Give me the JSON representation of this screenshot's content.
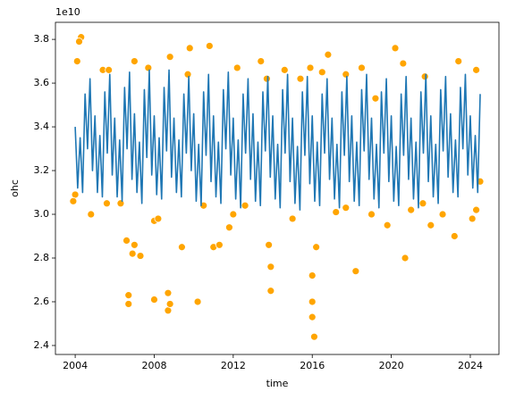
{
  "chart_data": {
    "type": "line",
    "xlabel": "time",
    "ylabel": "ohc",
    "y_multiplier": "1e10",
    "xlim": [
      2003.0,
      2025.45
    ],
    "ylim": [
      2.359,
      3.878
    ],
    "xticks": [
      2004,
      2008,
      2012,
      2016,
      2020,
      2024
    ],
    "yticks": [
      2.4,
      2.6,
      2.8,
      {
        "value": 3,
        "label": "3.0"
      },
      3.2,
      3.4,
      3.6,
      3.8
    ],
    "series": [
      {
        "type": "scatter",
        "color": "#ffa500",
        "x": [
          2004.3,
          2004.2,
          2004.1,
          2004.0,
          2003.9,
          2004.8,
          2005.4,
          2005.6,
          2006.3,
          2006.6,
          2006.7,
          2006.7,
          2006.9,
          2007.0,
          2007.3,
          2007.0,
          2007.7,
          2008.0,
          2008.0,
          2008.2,
          2008.7,
          2008.7,
          2008.8,
          2008.8,
          2009.4,
          2009.8,
          2010.2,
          2010.8,
          2011.0,
          2011.3,
          2011.8,
          2012.2,
          2012.6,
          2013.4,
          2013.8,
          2013.9,
          2013.9,
          2014.6,
          2015.4,
          2015.9,
          2016.0,
          2016.0,
          2016.0,
          2016.1,
          2016.2,
          2016.5,
          2016.8,
          2017.2,
          2018.2,
          2018.5,
          2019.2,
          2019.8,
          2020.2,
          2020.6,
          2020.7,
          2021.6,
          2022.6,
          2023.2,
          2023.4,
          2024.1,
          2024.3,
          2024.5,
          2024.3,
          2012.0,
          2010.5,
          2015.0,
          2017.7,
          2019.0,
          2021.0,
          2022.0,
          2005.7,
          2009.7,
          2013.7,
          2017.7,
          2021.7
        ],
        "values": [
          3.81,
          3.79,
          3.7,
          3.09,
          3.06,
          3.0,
          3.66,
          3.05,
          3.05,
          2.88,
          2.63,
          2.59,
          2.82,
          2.86,
          2.81,
          3.7,
          3.67,
          2.97,
          2.61,
          2.98,
          2.64,
          2.56,
          2.59,
          3.72,
          2.85,
          3.76,
          2.6,
          3.77,
          2.85,
          2.86,
          2.94,
          3.67,
          3.04,
          3.7,
          2.86,
          2.76,
          2.65,
          3.66,
          3.62,
          3.67,
          2.72,
          2.6,
          2.53,
          2.44,
          2.85,
          3.65,
          3.73,
          3.01,
          2.74,
          3.67,
          3.53,
          2.95,
          3.76,
          3.69,
          2.8,
          3.05,
          3.0,
          2.9,
          3.7,
          2.98,
          3.02,
          3.15,
          3.66,
          3.0,
          3.04,
          2.98,
          3.03,
          3.0,
          3.02,
          2.95,
          3.66,
          3.64,
          3.62,
          3.64,
          3.63
        ]
      },
      {
        "color": "#1f77b4",
        "x": [
          2004,
          2004.125,
          2004.25,
          2004.375,
          2004.5,
          2004.625,
          2004.75,
          2004.875,
          2005,
          2005.125,
          2005.25,
          2005.375,
          2005.5,
          2005.625,
          2005.75,
          2005.875,
          2006,
          2006.125,
          2006.25,
          2006.375,
          2006.5,
          2006.625,
          2006.75,
          2006.875,
          2007,
          2007.125,
          2007.25,
          2007.375,
          2007.5,
          2007.625,
          2007.75,
          2007.875,
          2008,
          2008.125,
          2008.25,
          2008.375,
          2008.5,
          2008.625,
          2008.75,
          2008.875,
          2009,
          2009.125,
          2009.25,
          2009.375,
          2009.5,
          2009.625,
          2009.75,
          2009.875,
          2010,
          2010.125,
          2010.25,
          2010.375,
          2010.5,
          2010.625,
          2010.75,
          2010.875,
          2011,
          2011.125,
          2011.25,
          2011.375,
          2011.5,
          2011.625,
          2011.75,
          2011.875,
          2012,
          2012.125,
          2012.25,
          2012.375,
          2012.5,
          2012.625,
          2012.75,
          2012.875,
          2013,
          2013.125,
          2013.25,
          2013.375,
          2013.5,
          2013.625,
          2013.75,
          2013.875,
          2014,
          2014.125,
          2014.25,
          2014.375,
          2014.5,
          2014.625,
          2014.75,
          2014.875,
          2015,
          2015.125,
          2015.25,
          2015.375,
          2015.5,
          2015.625,
          2015.75,
          2015.875,
          2016,
          2016.125,
          2016.25,
          2016.375,
          2016.5,
          2016.625,
          2016.75,
          2016.875,
          2017,
          2017.125,
          2017.25,
          2017.375,
          2017.5,
          2017.625,
          2017.75,
          2017.875,
          2018,
          2018.125,
          2018.25,
          2018.375,
          2018.5,
          2018.625,
          2018.75,
          2018.875,
          2019,
          2019.125,
          2019.25,
          2019.375,
          2019.5,
          2019.625,
          2019.75,
          2019.875,
          2020,
          2020.125,
          2020.25,
          2020.375,
          2020.5,
          2020.625,
          2020.75,
          2020.875,
          2021,
          2021.125,
          2021.25,
          2021.375,
          2021.5,
          2021.625,
          2021.75,
          2021.875,
          2022,
          2022.125,
          2022.25,
          2022.375,
          2022.5,
          2022.625,
          2022.75,
          2022.875,
          2023,
          2023.125,
          2023.25,
          2023.375,
          2023.5,
          2023.625,
          2023.75,
          2023.875,
          2024,
          2024.125,
          2024.25,
          2024.375,
          2024.5
        ],
        "values": [
          3.4,
          3.12,
          3.35,
          3.1,
          3.55,
          3.3,
          3.62,
          3.2,
          3.45,
          3.1,
          3.36,
          3.08,
          3.56,
          3.28,
          3.64,
          3.18,
          3.44,
          3.08,
          3.34,
          3.06,
          3.58,
          3.3,
          3.65,
          3.16,
          3.46,
          3.1,
          3.33,
          3.05,
          3.57,
          3.26,
          3.66,
          3.18,
          3.45,
          3.09,
          3.35,
          3.07,
          3.58,
          3.29,
          3.66,
          3.17,
          3.44,
          3.1,
          3.34,
          3.08,
          3.55,
          3.28,
          3.63,
          3.2,
          3.46,
          3.06,
          3.32,
          3.04,
          3.56,
          3.27,
          3.64,
          3.15,
          3.45,
          3.08,
          3.33,
          3.05,
          3.57,
          3.3,
          3.65,
          3.18,
          3.44,
          3.07,
          3.34,
          3.03,
          3.55,
          3.28,
          3.62,
          3.16,
          3.46,
          3.06,
          3.33,
          3.04,
          3.56,
          3.29,
          3.63,
          3.17,
          3.45,
          3.07,
          3.32,
          3.03,
          3.57,
          3.28,
          3.64,
          3.15,
          3.44,
          3.05,
          3.31,
          3.02,
          3.56,
          3.27,
          3.63,
          3.14,
          3.45,
          3.06,
          3.33,
          3.04,
          3.55,
          3.28,
          3.62,
          3.16,
          3.44,
          3.07,
          3.32,
          3.03,
          3.56,
          3.27,
          3.63,
          3.15,
          3.45,
          3.06,
          3.33,
          3.04,
          3.57,
          3.29,
          3.64,
          3.16,
          3.44,
          3.07,
          3.32,
          3.03,
          3.56,
          3.28,
          3.62,
          3.15,
          3.45,
          3.06,
          3.31,
          3.04,
          3.55,
          3.27,
          3.63,
          3.16,
          3.44,
          3.07,
          3.33,
          3.03,
          3.56,
          3.28,
          3.64,
          3.15,
          3.45,
          3.08,
          3.32,
          3.05,
          3.57,
          3.29,
          3.63,
          3.17,
          3.46,
          3.1,
          3.34,
          3.08,
          3.58,
          3.3,
          3.64,
          3.18,
          3.45,
          3.12,
          3.36,
          3.1,
          3.55
        ]
      }
    ]
  }
}
